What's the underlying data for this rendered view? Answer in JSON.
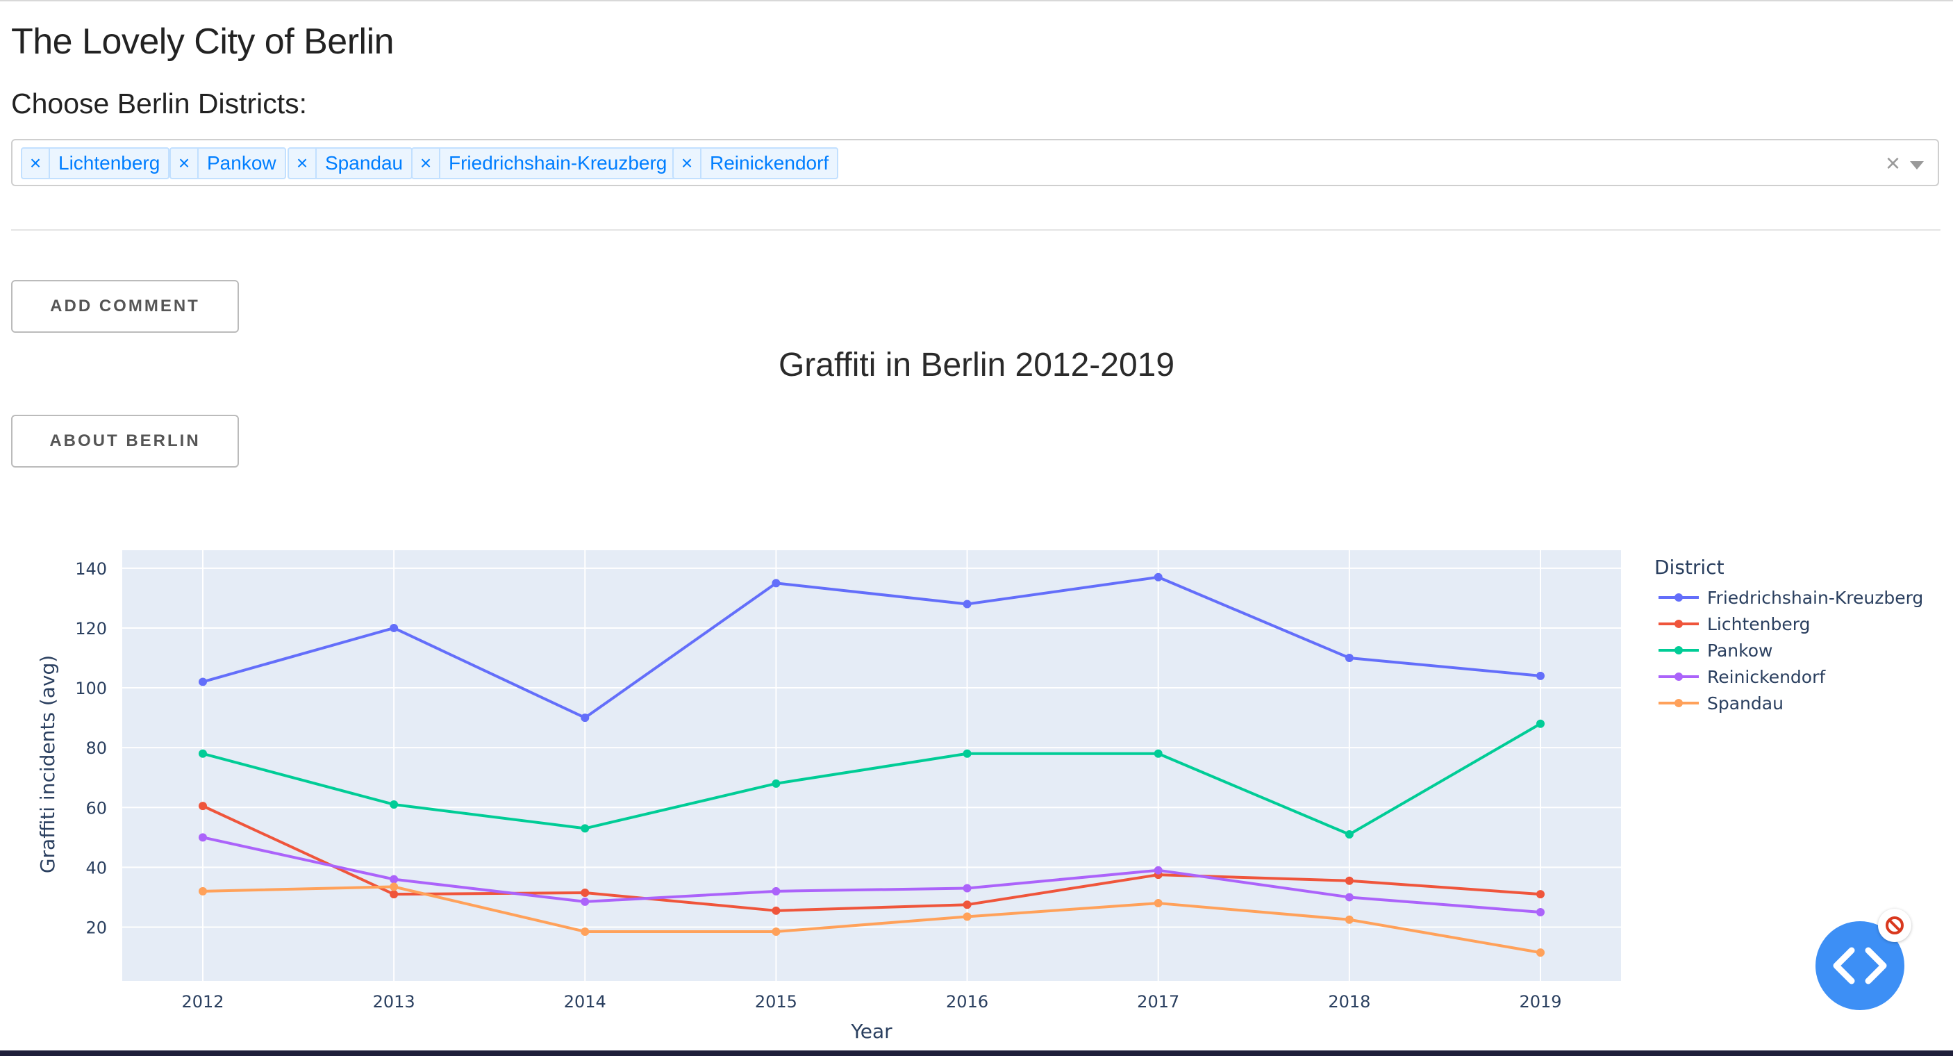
{
  "page": {
    "title": "The Lovely City of Berlin",
    "districts_label": "Choose Berlin Districts:"
  },
  "dropdown": {
    "selected": [
      "Lichtenberg",
      "Pankow",
      "Spandau",
      "Friedrichshain-Kreuzberg",
      "Reinickendorf"
    ],
    "remove_glyph": "×",
    "clear_glyph": "×"
  },
  "buttons": {
    "add_comment": "ADD COMMENT",
    "about_berlin": "ABOUT BERLIN"
  },
  "colors": {
    "plot_bg": "#e5ecf6",
    "accent": "#007eff",
    "fab": "#3d8ff5"
  },
  "icons": {
    "fab": "code-brackets-icon",
    "badge": "no-entry-icon"
  },
  "chart_data": {
    "type": "line",
    "title": "Graffiti in Berlin 2012-2019",
    "xlabel": "Year",
    "ylabel": "Graffiti incidents (avg)",
    "x": [
      2012,
      2013,
      2014,
      2015,
      2016,
      2017,
      2018,
      2019
    ],
    "ylim": [
      2,
      146
    ],
    "yticks": [
      20,
      40,
      60,
      80,
      100,
      120,
      140
    ],
    "grid": true,
    "legend_title": "District",
    "legend_position": "right",
    "series": [
      {
        "name": "Friedrichshain-Kreuzberg",
        "color": "#636efa",
        "values": [
          102,
          120,
          90,
          135,
          128,
          137,
          110,
          104
        ]
      },
      {
        "name": "Lichtenberg",
        "color": "#ef553b",
        "values": [
          60.5,
          31,
          31.5,
          25.5,
          27.5,
          37.5,
          35.5,
          31
        ]
      },
      {
        "name": "Pankow",
        "color": "#00cc96",
        "values": [
          78,
          61,
          53,
          68,
          78,
          78,
          51,
          88
        ]
      },
      {
        "name": "Reinickendorf",
        "color": "#ab63fa",
        "values": [
          50,
          36,
          28.5,
          32,
          33,
          39,
          30,
          25
        ]
      },
      {
        "name": "Spandau",
        "color": "#ffa15a",
        "values": [
          32,
          33.5,
          18.5,
          18.5,
          23.5,
          28,
          22.5,
          11.5
        ]
      }
    ]
  }
}
